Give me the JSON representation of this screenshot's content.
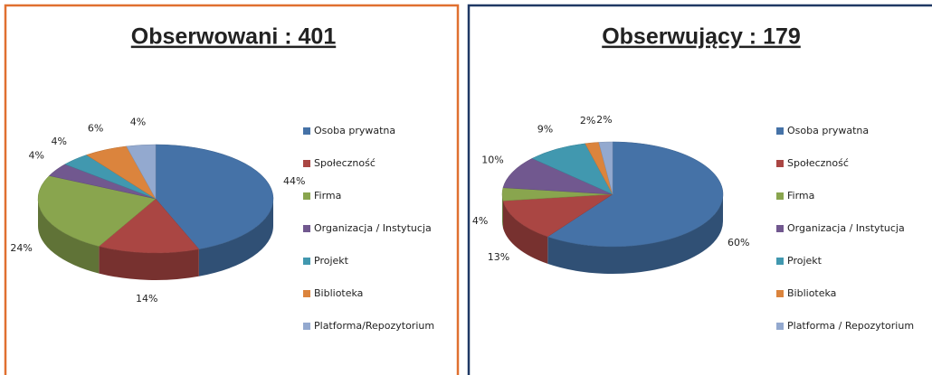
{
  "chart_data": [
    {
      "type": "pie",
      "title": "Obserwowani : 401",
      "categories": [
        "Osoba prywatna",
        "Społeczność",
        "Firma",
        "Organizacja / Instytucja",
        "Projekt",
        "Biblioteka",
        "Platforma/Repozytorium"
      ],
      "values": [
        44,
        14,
        24,
        4,
        4,
        6,
        4
      ],
      "value_labels": [
        "44%",
        "14%",
        "24%",
        "4%",
        "4%",
        "6%",
        "4%"
      ],
      "colors": [
        "#4572a7",
        "#aa4643",
        "#89a54e",
        "#71588f",
        "#4198af",
        "#db843d",
        "#93a9cf"
      ]
    },
    {
      "type": "pie",
      "title": "Obserwujący : 179",
      "categories": [
        "Osoba prywatna",
        "Społeczność",
        "Firma",
        "Organizacja / Instytucja",
        "Projekt",
        "Biblioteka",
        "Platforma / Repozytorium"
      ],
      "values": [
        60,
        13,
        4,
        10,
        9,
        2,
        2
      ],
      "value_labels": [
        "60%",
        "13%",
        "4%",
        "10%",
        "9%",
        "2%",
        "2%"
      ],
      "colors": [
        "#4572a7",
        "#aa4643",
        "#89a54e",
        "#71588f",
        "#4198af",
        "#db843d",
        "#93a9cf"
      ]
    }
  ]
}
